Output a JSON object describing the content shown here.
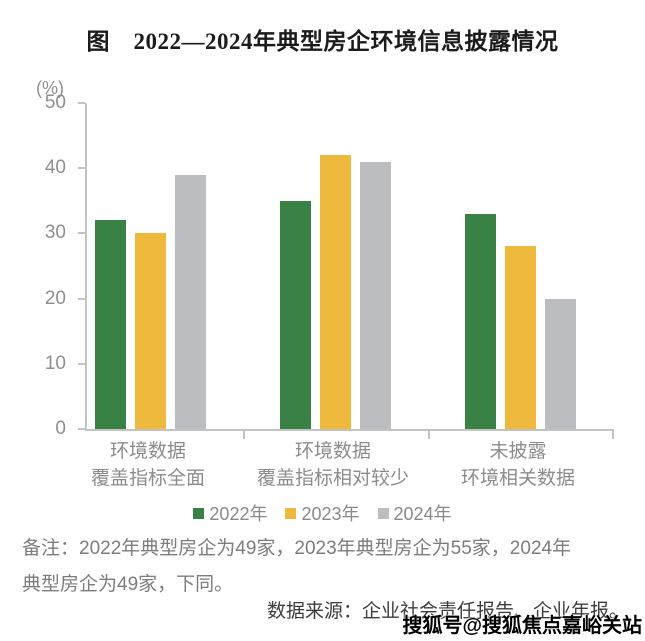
{
  "title": "图　2022—2024年典型房企环境信息披露情况",
  "note": "备注：2022年典型房企为49家，2023年典型房企为55家，2024年典型房企为49家，下同。",
  "source": "数据来源：企业社会责任报告、企业年报。",
  "watermark": "搜狐号@搜狐焦点嘉峪关站",
  "chart_data": {
    "type": "bar",
    "unit": "(%)",
    "categories": [
      [
        "环境数据",
        "覆盖指标全面"
      ],
      [
        "环境数据",
        "覆盖指标相对较少"
      ],
      [
        "未披露",
        "环境相关数据"
      ]
    ],
    "series": [
      {
        "name": "2022年",
        "color": "#3a8145",
        "values": [
          32,
          35,
          33
        ]
      },
      {
        "name": "2023年",
        "color": "#eeb93c",
        "values": [
          30,
          42,
          28
        ]
      },
      {
        "name": "2024年",
        "color": "#bcbdc1",
        "values": [
          39,
          41,
          20
        ]
      }
    ],
    "ylim": [
      0,
      50
    ],
    "yticks": [
      0,
      10,
      20,
      30,
      40,
      50
    ],
    "grid": false,
    "legend_position": "bottom",
    "axis_color": "#c3c3c3"
  }
}
